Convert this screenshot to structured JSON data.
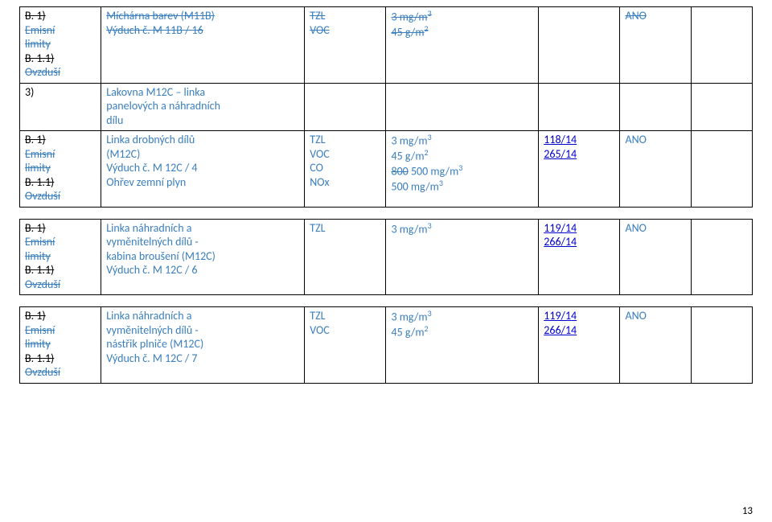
{
  "page_number": "13",
  "labels": {
    "b1_strike": "B. 1)",
    "emisni": "Emisní",
    "limity": "limity",
    "b11_strike": "B. 1.1)",
    "ovzdusi": "Ovzduší",
    "item3": "3)"
  },
  "row1": {
    "desc_line1_strike": "Míchárna barev (M11B)",
    "desc_line2_strike": "Výduch č. M 11B / 16",
    "c3_l1": "TZL",
    "c3_l2": "VOC",
    "c4_l1": "3  mg/m",
    "c4_l1_sup": "3",
    "c4_l2": "45  g/m",
    "c4_l2_sup": "2",
    "c6": "ANO"
  },
  "row2": {
    "desc_l1": "Lakovna M12C – linka",
    "desc_l2": "panelových a náhradních",
    "desc_l3": "dílu"
  },
  "row3": {
    "desc_l1": "Linka drobných dílů",
    "desc_l2": "(M12C)",
    "desc_l3": "Výduch č. M 12C / 4",
    "desc_l4": "Ohřev zemní plyn",
    "c3_l1": "TZL",
    "c3_l2": "VOC",
    "c3_l3": "CO",
    "c3_l4": "NOx",
    "c4_l1_a": "3  mg/m",
    "c4_l1_sup": "3",
    "c4_l2_a": " 45  g/m",
    "c4_l2_sup": "2",
    "c4_l3_strike": "800",
    "c4_l3_rest": " 500  mg/m",
    "c4_l3_sup": "3",
    "c4_l4_a": " 500  mg/m",
    "c4_l4_sup": "3",
    "c5_l1": "118/14",
    "c5_l2": "265/14",
    "c6": "ANO"
  },
  "row4": {
    "desc_l1": "Linka náhradních a",
    "desc_l2": "vyměnitelných dílů -",
    "desc_l3": "kabina broušení (M12C)",
    "desc_l4": "Výduch č. M 12C / 6",
    "c3_l1": "TZL",
    "c4_l1_a": "3  mg/m",
    "c4_l1_sup": "3",
    "c5_l1": "119/14",
    "c5_l2": "266/14",
    "c6": "ANO"
  },
  "row5": {
    "desc_l1": "Linka náhradních a",
    "desc_l2": "vyměnitelných dílů -",
    "desc_l3": "nástřik plniče (M12C)",
    "desc_l4": "Výduch č. M 12C / 7",
    "c3_l1": "TZL",
    "c3_l2": "VOC",
    "c4_l1_a": "3  mg/m",
    "c4_l1_sup": "3",
    "c4_l2_a": "45  g/m",
    "c4_l2_sup": "2",
    "c5_l1": "119/14",
    "c5_l2": "266/14",
    "c6": "ANO"
  }
}
